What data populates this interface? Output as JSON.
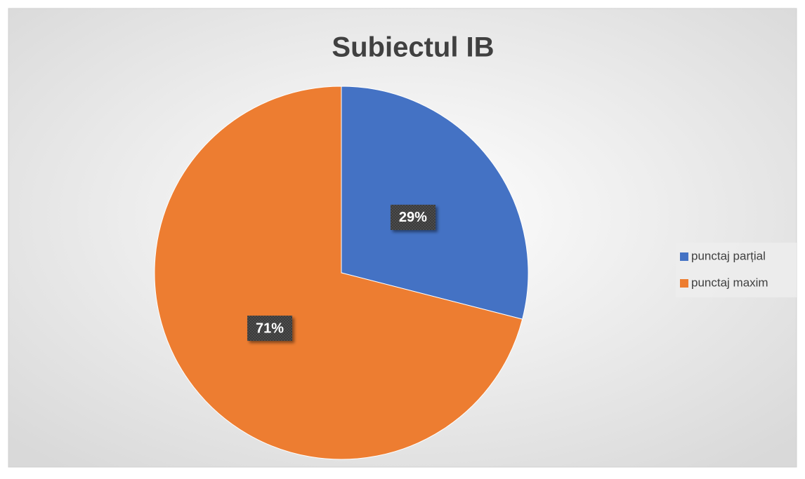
{
  "chart_data": {
    "type": "pie",
    "title": "Subiectul IB",
    "categories": [
      "punctaj parțial",
      "punctaj maxim"
    ],
    "values": [
      29,
      71
    ],
    "value_labels": [
      "29%",
      "71%"
    ],
    "colors": [
      "#4472c4",
      "#ed7d31"
    ],
    "legend": "right"
  }
}
